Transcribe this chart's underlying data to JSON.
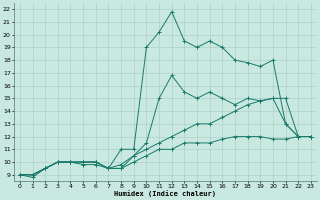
{
  "xlabel": "Humidex (Indice chaleur)",
  "ylabel": "",
  "xlim": [
    -0.5,
    23.5
  ],
  "ylim": [
    8.5,
    22.5
  ],
  "xticks": [
    0,
    1,
    2,
    3,
    4,
    5,
    6,
    7,
    8,
    9,
    10,
    11,
    12,
    13,
    14,
    15,
    16,
    17,
    18,
    19,
    20,
    21,
    22,
    23
  ],
  "yticks": [
    9,
    10,
    11,
    12,
    13,
    14,
    15,
    16,
    17,
    18,
    19,
    20,
    21,
    22
  ],
  "bg_color": "#c8e8e0",
  "line_color": "#1a7a6a",
  "grid_color": "#a8ccc4",
  "lines": [
    {
      "x": [
        0,
        1,
        2,
        3,
        4,
        5,
        6,
        7,
        8,
        9,
        10,
        11,
        12,
        13,
        14,
        15,
        16,
        17,
        18,
        19,
        20,
        21,
        22,
        23
      ],
      "y": [
        9,
        8.8,
        9.5,
        10,
        10,
        9.8,
        9.8,
        9.5,
        9.5,
        10,
        10.5,
        11,
        11,
        11.5,
        11.5,
        11.5,
        11.8,
        12,
        12,
        12,
        11.8,
        11.8,
        12,
        12
      ]
    },
    {
      "x": [
        0,
        1,
        2,
        3,
        4,
        5,
        6,
        7,
        8,
        9,
        10,
        11,
        12,
        13,
        14,
        15,
        16,
        17,
        18,
        19,
        20,
        21,
        22,
        23
      ],
      "y": [
        9,
        9,
        9.5,
        10,
        10,
        10,
        10,
        9.5,
        9.8,
        10.5,
        11,
        11.5,
        12,
        12.5,
        13,
        13,
        13.5,
        14,
        14.5,
        14.8,
        15,
        15,
        12,
        12
      ]
    },
    {
      "x": [
        0,
        1,
        2,
        3,
        4,
        5,
        6,
        7,
        8,
        9,
        10,
        11,
        12,
        13,
        14,
        15,
        16,
        17,
        18,
        19,
        20,
        21,
        22,
        23
      ],
      "y": [
        9,
        9,
        9.5,
        10,
        10,
        10,
        10,
        9.5,
        9.5,
        10.5,
        11.5,
        15,
        16.8,
        15.5,
        15,
        15.5,
        15,
        14.5,
        15,
        14.8,
        15,
        13,
        12,
        12
      ]
    },
    {
      "x": [
        0,
        1,
        2,
        3,
        4,
        5,
        6,
        7,
        8,
        9,
        10,
        11,
        12,
        13,
        14,
        15,
        16,
        17,
        18,
        19,
        20,
        21,
        22,
        23
      ],
      "y": [
        9,
        9,
        9.5,
        10,
        10,
        10,
        10,
        9.5,
        11,
        11,
        19,
        20.2,
        21.8,
        19.5,
        19,
        19.5,
        19,
        18,
        17.8,
        17.5,
        18,
        13,
        12,
        12
      ]
    }
  ]
}
